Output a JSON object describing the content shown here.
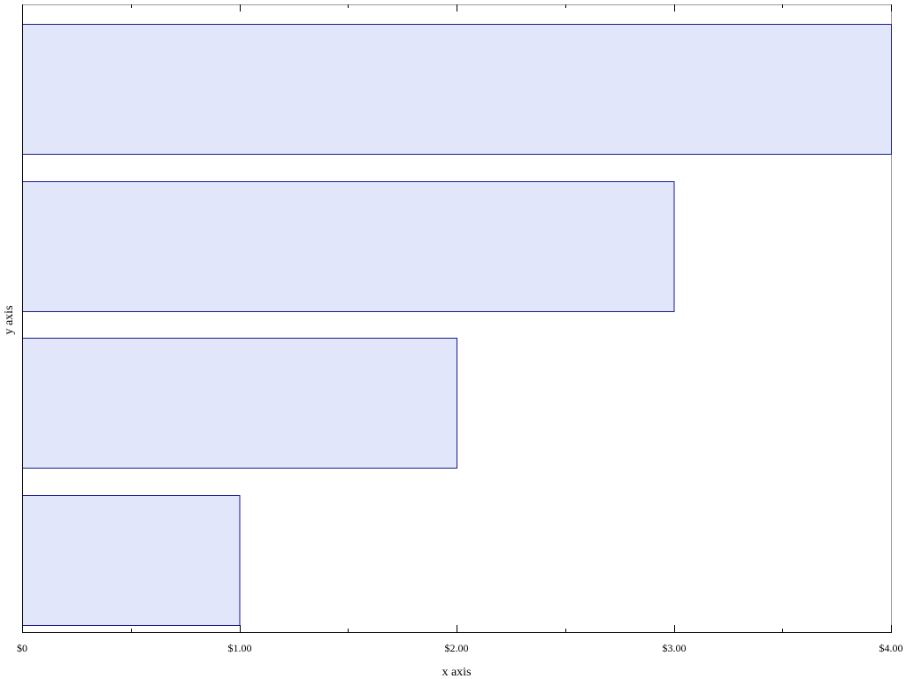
{
  "chart_data": {
    "type": "bar",
    "orientation": "horizontal",
    "title": "",
    "xlabel": "x axis",
    "ylabel": "y axis",
    "xlim": [
      0,
      4
    ],
    "x_tick_values": [
      0,
      1,
      2,
      3,
      4
    ],
    "x_tick_labels": [
      "$0",
      "$1.00",
      "$2.00",
      "$3.00",
      "$4.00"
    ],
    "x_minor_step": 0.5,
    "categories": [
      "",
      "",
      "",
      ""
    ],
    "values": [
      4,
      3,
      2,
      1
    ],
    "grid": false,
    "legend": "none",
    "colors": {
      "bar_fill": "#e1e6fa",
      "bar_stroke": "#1a1a8c",
      "frame": "#999999",
      "axis": "#000000"
    }
  }
}
